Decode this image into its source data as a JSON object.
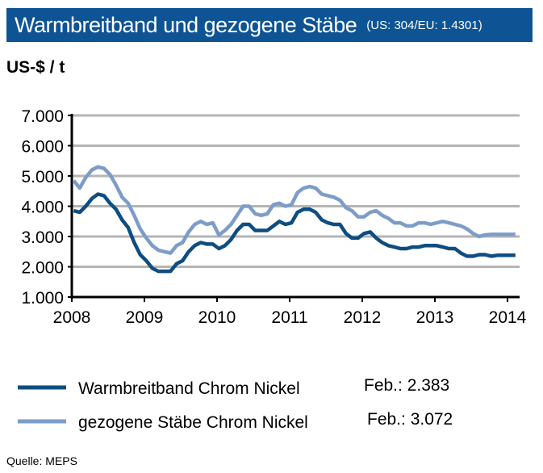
{
  "header": {
    "title": "Warmbreitband und gezogene Stäbe",
    "subtitle": "(US: 304/EU:  1.4301)"
  },
  "source": "Quelle:  MEPS",
  "chart_data": {
    "type": "line",
    "title": "Warmbreitband und gezogene Stäbe",
    "ylabel": "US-$ / t",
    "ylim": [
      1000,
      7000
    ],
    "yticks": [
      "1.000",
      "2.000",
      "3.000",
      "4.000",
      "5.000",
      "6.000",
      "7.000"
    ],
    "xticks": [
      "2008",
      "2009",
      "2010",
      "2011",
      "2012",
      "2013",
      "2014"
    ],
    "grid": true,
    "legend_placement": "bottom",
    "x_start": "2008-01",
    "x_end": "2014-02",
    "frequency": "monthly",
    "series": [
      {
        "name": "Warmbreitband Chrom Nickel",
        "annotation": "Feb.: 2.383",
        "color": "#0e4d80",
        "values": [
          3850,
          3800,
          4000,
          4250,
          4400,
          4350,
          4100,
          3900,
          3550,
          3300,
          2800,
          2400,
          2200,
          1950,
          1850,
          1850,
          1850,
          2100,
          2200,
          2500,
          2700,
          2800,
          2750,
          2750,
          2600,
          2700,
          2900,
          3200,
          3400,
          3400,
          3200,
          3200,
          3200,
          3350,
          3500,
          3400,
          3450,
          3800,
          3900,
          3900,
          3800,
          3550,
          3450,
          3400,
          3400,
          3100,
          2950,
          2950,
          3100,
          3150,
          2950,
          2800,
          2700,
          2650,
          2600,
          2600,
          2650,
          2650,
          2700,
          2700,
          2700,
          2650,
          2600,
          2600,
          2450,
          2350,
          2350,
          2400,
          2400,
          2350,
          2380,
          2380,
          2380,
          2383
        ]
      },
      {
        "name": "gezogene Stäbe Chrom Nickel",
        "annotation": "Feb.: 3.072",
        "color": "#7d9dc8",
        "values": [
          4850,
          4600,
          4950,
          5200,
          5300,
          5250,
          5050,
          4700,
          4300,
          4100,
          3700,
          3250,
          2950,
          2700,
          2550,
          2500,
          2450,
          2700,
          2800,
          3150,
          3400,
          3500,
          3400,
          3450,
          3050,
          3200,
          3400,
          3700,
          4000,
          4000,
          3750,
          3700,
          3750,
          4050,
          4100,
          4000,
          4050,
          4450,
          4600,
          4650,
          4600,
          4400,
          4350,
          4300,
          4200,
          3950,
          3850,
          3650,
          3650,
          3800,
          3850,
          3700,
          3600,
          3450,
          3450,
          3350,
          3350,
          3450,
          3450,
          3400,
          3450,
          3500,
          3450,
          3400,
          3350,
          3250,
          3100,
          3000,
          3050,
          3070,
          3070,
          3070,
          3070,
          3072
        ]
      }
    ]
  }
}
